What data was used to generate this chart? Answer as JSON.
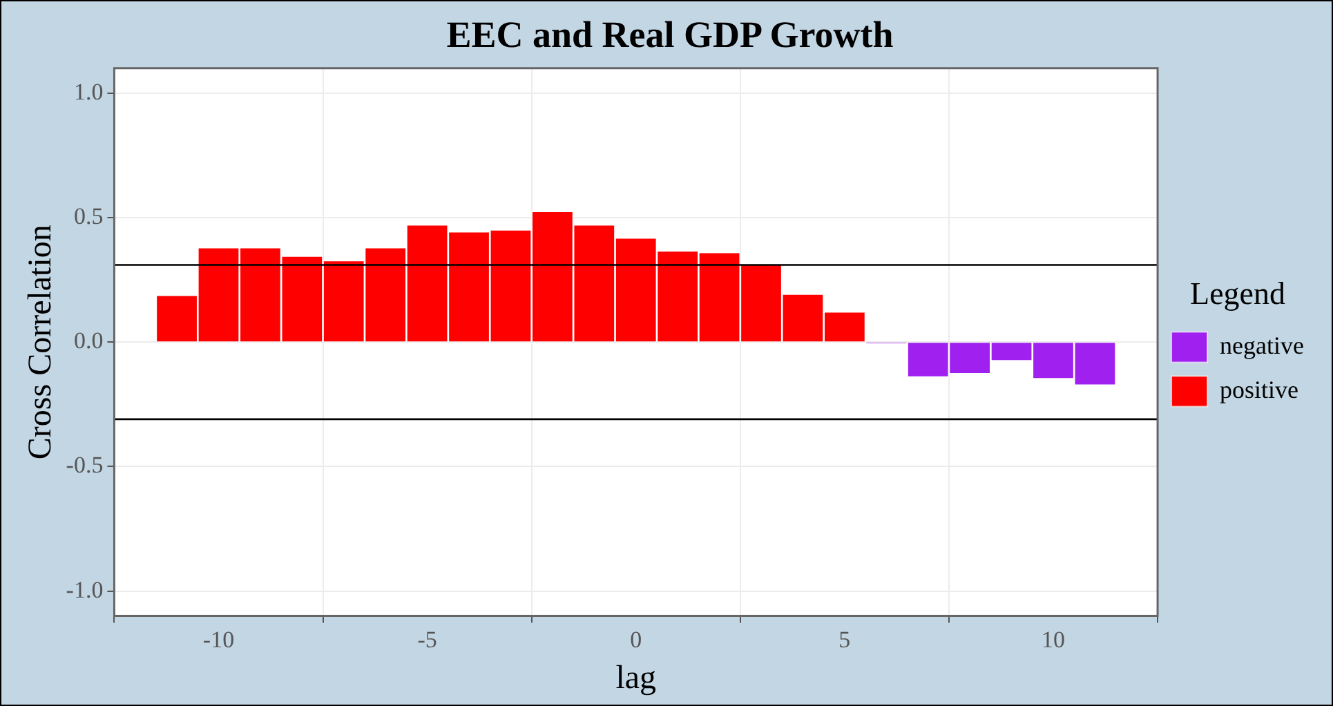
{
  "chart_data": {
    "type": "bar",
    "title": "EEC and Real GDP Growth",
    "xlabel": "lag",
    "ylabel": "Cross Correlation",
    "legend_title": "Legend",
    "series": [
      {
        "name": "negative",
        "color": "#a020f0",
        "x": [
          6,
          7,
          8,
          9,
          10,
          11
        ],
        "values": [
          -0.004,
          -0.141,
          -0.128,
          -0.076,
          -0.148,
          -0.174
        ]
      },
      {
        "name": "positive",
        "color": "#ff0000",
        "x": [
          -11,
          -10,
          -9,
          -8,
          -7,
          -6,
          -5,
          -4,
          -3,
          -2,
          -1,
          0,
          1,
          2,
          3,
          4,
          5
        ],
        "values": [
          0.189,
          0.38,
          0.38,
          0.346,
          0.328,
          0.38,
          0.472,
          0.444,
          0.452,
          0.526,
          0.472,
          0.419,
          0.367,
          0.361,
          0.313,
          0.194,
          0.122
        ]
      }
    ],
    "xlim": [
      -12.5,
      12.5
    ],
    "xticks": [
      -10,
      -5,
      0,
      5,
      10
    ],
    "ylim": [
      -1.1,
      1.1
    ],
    "yticks": [
      {
        "value": -1,
        "label": "-1.0"
      },
      -0.5,
      {
        "value": 0,
        "label": "0.0"
      },
      0.5,
      {
        "value": 1,
        "label": "1.0"
      }
    ],
    "ref_lines": [
      {
        "axis": "y",
        "value": 0.31,
        "color": "#000000"
      },
      {
        "axis": "y",
        "value": -0.31,
        "color": "#000000"
      }
    ],
    "grid": true,
    "legend": "right"
  }
}
